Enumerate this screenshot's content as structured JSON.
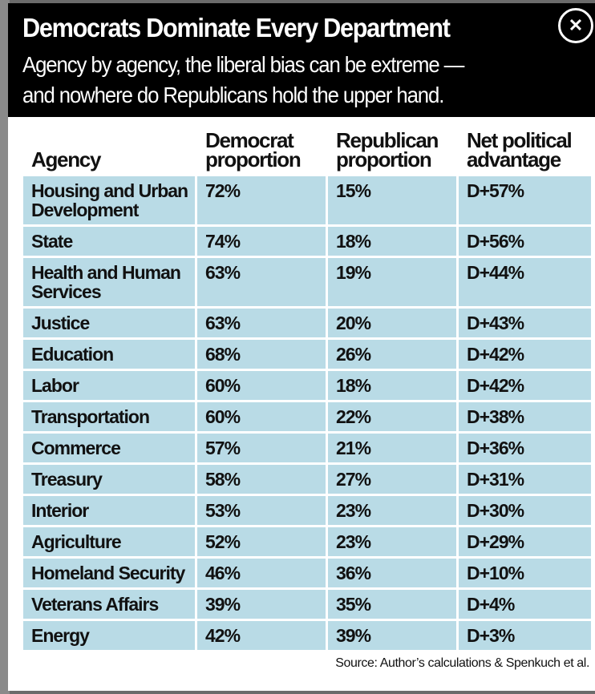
{
  "title": "Democrats Dominate Every Department",
  "subtitle_line1": "Agency by agency, the liberal bias can be extreme —",
  "subtitle_line2": "and nowhere do Republicans hold the upper hand.",
  "close_icon": "close-icon",
  "columns": [
    "Agency",
    "Democrat proportion",
    "Republican proportion",
    "Net political advantage"
  ],
  "rows": [
    [
      "Housing and Urban Development",
      "72%",
      "15%",
      "D+57%"
    ],
    [
      "State",
      "74%",
      "18%",
      "D+56%"
    ],
    [
      "Health and Human Services",
      "63%",
      "19%",
      "D+44%"
    ],
    [
      "Justice",
      "63%",
      "20%",
      "D+43%"
    ],
    [
      "Education",
      "68%",
      "26%",
      "D+42%"
    ],
    [
      "Labor",
      "60%",
      "18%",
      "D+42%"
    ],
    [
      "Transportation",
      "60%",
      "22%",
      "D+38%"
    ],
    [
      "Commerce",
      "57%",
      "21%",
      "D+36%"
    ],
    [
      "Treasury",
      "58%",
      "27%",
      "D+31%"
    ],
    [
      "Interior",
      "53%",
      "23%",
      "D+30%"
    ],
    [
      "Agriculture",
      "52%",
      "23%",
      "D+29%"
    ],
    [
      "Homeland Security",
      "46%",
      "36%",
      "D+10%"
    ],
    [
      "Veterans Affairs",
      "39%",
      "35%",
      "D+4%"
    ],
    [
      "Energy",
      "42%",
      "39%",
      "D+3%"
    ]
  ],
  "source": "Source: Author’s calculations & Spenkuch et al."
}
